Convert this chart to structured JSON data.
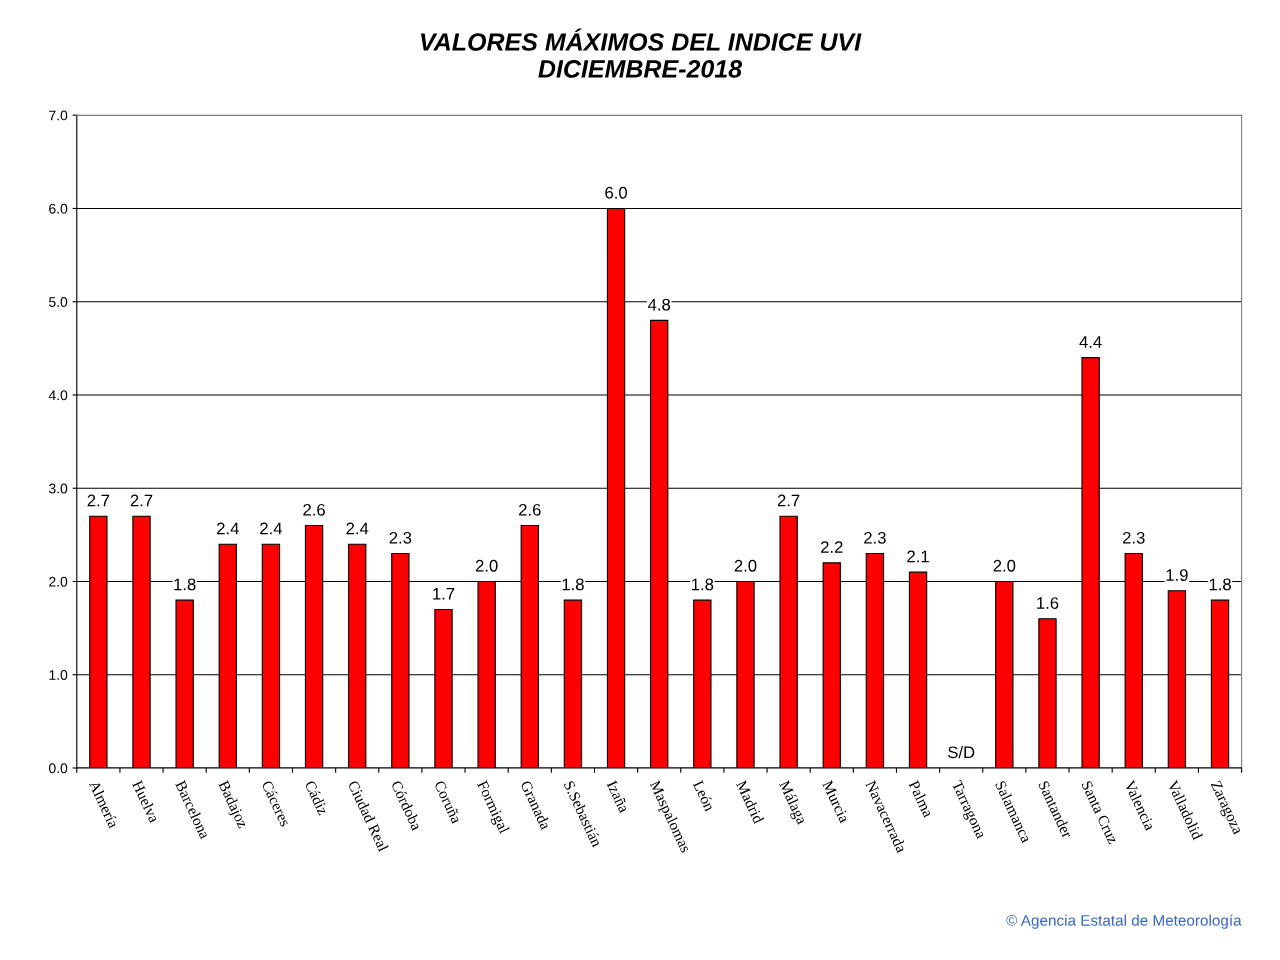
{
  "chart_data": {
    "type": "bar",
    "title": "VALORES MÁXIMOS DEL INDICE UVI\nDICIEMBRE-2018",
    "categories": [
      "Almería",
      "Huelva",
      "Barcelona",
      "Badajoz",
      "Cáceres",
      "Cádiz",
      "Ciudad Real",
      "Córdoba",
      "Coruña",
      "Formigal",
      "Granada",
      "S.Sebastián",
      "Izaña",
      "Maspalomas",
      "León",
      "Madrid",
      "Málaga",
      "Murcia",
      "Navacerrada",
      "Palma",
      "Tarragona",
      "Salamanca",
      "Santander",
      "Santa Cruz",
      "Valencia",
      "Valladolid",
      "Zaragoza"
    ],
    "values": [
      2.7,
      2.7,
      1.8,
      2.4,
      2.4,
      2.6,
      2.4,
      2.3,
      1.7,
      2.0,
      2.6,
      1.8,
      6.0,
      4.8,
      1.8,
      2.0,
      2.7,
      2.2,
      2.3,
      2.1,
      null,
      2.0,
      1.6,
      4.4,
      2.3,
      1.9,
      1.8
    ],
    "value_labels": [
      "2.7",
      "2.7",
      "1.8",
      "2.4",
      "2.4",
      "2.6",
      "2.4",
      "2.3",
      "1.7",
      "2.0",
      "2.6",
      "1.8",
      "6.0",
      "4.8",
      "1.8",
      "2.0",
      "2.7",
      "2.2",
      "2.3",
      "2.1",
      "S/D",
      "2.0",
      "1.6",
      "4.4",
      "2.3",
      "1.9",
      "1.8"
    ],
    "color": "#ff0000",
    "ylim": [
      0,
      7
    ],
    "yticks": [
      {
        "value": 0,
        "label": "0.0"
      },
      {
        "value": 1,
        "label": "1.0"
      },
      {
        "value": 2,
        "label": "2.0"
      },
      {
        "value": 3,
        "label": "3.0"
      },
      {
        "value": 4,
        "label": "4.0"
      },
      {
        "value": 5,
        "label": "5.0"
      },
      {
        "value": 6,
        "label": "6.0"
      },
      {
        "value": 7,
        "label": "7.0"
      }
    ],
    "grid": "y",
    "annotations": [
      "© Agencia Estatal de Meteorología"
    ]
  }
}
